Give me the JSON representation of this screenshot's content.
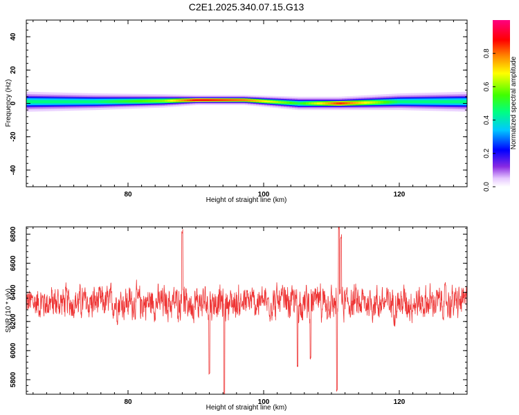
{
  "title": "C2E1.2025.340.07.15.G13",
  "colors": {
    "snr_line": "#ee3333",
    "axes": "#000000"
  },
  "chart_data": [
    {
      "type": "heatmap",
      "name": "spectrogram",
      "xlabel": "Height of straight line (km)",
      "ylabel": "Frequency (Hz)",
      "xlim": [
        65,
        130
      ],
      "ylim": [
        -50,
        50
      ],
      "xticks": [
        80,
        100,
        120
      ],
      "yticks": [
        -40,
        -20,
        0,
        20,
        40
      ],
      "colorbar": {
        "label": "Normalized spectral amplitude",
        "range": [
          0.0,
          1.0
        ],
        "ticks": [
          "0.0",
          "0.2",
          "0.4",
          "0.6",
          "0.8"
        ],
        "colormap": "rainbow"
      },
      "band": {
        "description_points": [
          {
            "x": 65,
            "center": 1,
            "halfwidth": 3,
            "peak": 0.45
          },
          {
            "x": 75,
            "center": 1,
            "halfwidth": 2.5,
            "peak": 0.45
          },
          {
            "x": 85,
            "center": 1.5,
            "halfwidth": 2,
            "peak": 0.6
          },
          {
            "x": 90,
            "center": 2,
            "halfwidth": 1.5,
            "peak": 0.9
          },
          {
            "x": 97,
            "center": 2,
            "halfwidth": 1.5,
            "peak": 0.8
          },
          {
            "x": 105,
            "center": 0,
            "halfwidth": 2,
            "peak": 0.5
          },
          {
            "x": 111,
            "center": 0,
            "halfwidth": 2,
            "peak": 0.85
          },
          {
            "x": 120,
            "center": 1,
            "halfwidth": 2.5,
            "peak": 0.45
          },
          {
            "x": 130,
            "center": 1,
            "halfwidth": 3,
            "peak": 0.45
          }
        ]
      }
    },
    {
      "type": "line",
      "name": "snr",
      "xlabel": "Height of straight line (km)",
      "ylabel": "SNR (10 * v/v)",
      "xlim": [
        65,
        130
      ],
      "ylim": [
        5700,
        6850
      ],
      "xticks": [
        80,
        100,
        120
      ],
      "yticks": [
        5800,
        6000,
        6200,
        6400,
        6600,
        6800
      ],
      "series": [
        {
          "mean": 6330,
          "noise_amplitude": 180,
          "spikes": [
            {
              "x": 88,
              "y": 6820
            },
            {
              "x": 92,
              "y": 5850
            },
            {
              "x": 94.2,
              "y": 5700
            },
            {
              "x": 105,
              "y": 5900
            },
            {
              "x": 106.9,
              "y": 5960
            },
            {
              "x": 110.8,
              "y": 5720
            },
            {
              "x": 111.1,
              "y": 6850
            },
            {
              "x": 111.4,
              "y": 6780
            }
          ]
        }
      ]
    }
  ]
}
